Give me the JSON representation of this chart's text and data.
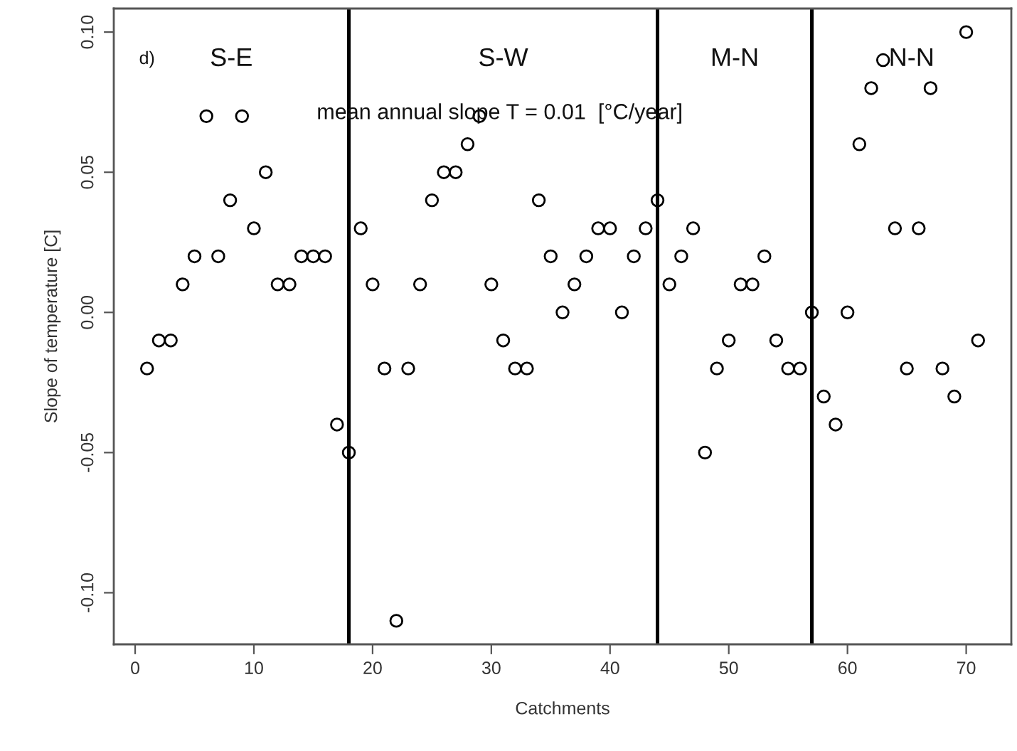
{
  "chart_data": {
    "type": "scatter",
    "xlabel": "Catchments",
    "ylabel": "Slope of temperature [C]",
    "x": [
      1,
      2,
      3,
      4,
      5,
      6,
      7,
      8,
      9,
      10,
      11,
      12,
      13,
      14,
      15,
      16,
      17,
      18,
      19,
      20,
      21,
      22,
      23,
      24,
      25,
      26,
      27,
      28,
      29,
      30,
      31,
      32,
      33,
      34,
      35,
      36,
      37,
      38,
      39,
      40,
      41,
      42,
      43,
      44,
      45,
      46,
      47,
      48,
      49,
      50,
      51,
      52,
      53,
      54,
      55,
      56,
      57,
      58,
      59,
      60,
      61,
      62,
      63,
      64,
      65,
      66,
      67,
      68,
      69,
      70,
      71
    ],
    "series": [
      {
        "color": "#000000",
        "values": [
          -0.02,
          -0.01,
          -0.01,
          0.01,
          0.02,
          0.07,
          0.02,
          0.04,
          0.07,
          0.03,
          0.05,
          0.01,
          0.01,
          0.02,
          0.02,
          0.02,
          -0.04,
          -0.05,
          0.03,
          0.01,
          -0.02,
          -0.11,
          -0.02,
          0.01,
          0.04,
          0.05,
          0.05,
          0.06,
          0.07,
          0.01,
          -0.01,
          -0.02,
          -0.02,
          0.04,
          0.02,
          0.0,
          0.01,
          0.02,
          0.03,
          0.03,
          0.0,
          0.02,
          0.03,
          0.04,
          0.01,
          0.02,
          0.03,
          -0.05,
          -0.02,
          -0.01,
          0.01,
          0.01,
          0.02,
          -0.01,
          -0.02,
          -0.02,
          0.0,
          -0.03,
          -0.04,
          0.0,
          0.06,
          0.08,
          0.09,
          0.03,
          -0.02,
          0.03,
          0.08,
          -0.02,
          -0.03,
          0.1,
          -0.01
        ]
      }
    ],
    "marker": "circle",
    "grid": false,
    "legend": false,
    "xlim": [
      -1.8,
      73.8
    ],
    "xticks": [
      0,
      10,
      20,
      30,
      40,
      50,
      60,
      70
    ],
    "ylim": [
      -0.1184,
      0.1084
    ],
    "yticks": [
      {
        "value": -0.1,
        "label": "-0.10"
      },
      {
        "value": -0.05,
        "label": "-0.05"
      },
      {
        "value": 0,
        "label": "0.00"
      },
      {
        "value": 0.05,
        "label": "0.05"
      },
      {
        "value": 0.1,
        "label": "0.10"
      }
    ],
    "ref_lines": [
      {
        "axis": "x",
        "value": 18,
        "color": "#000000"
      },
      {
        "axis": "x",
        "value": 44,
        "color": "#000000"
      },
      {
        "axis": "x",
        "value": 57,
        "color": "#000000"
      }
    ],
    "annotations": [
      "d)",
      "S-E",
      "S-W",
      "M-N",
      "N-N",
      "mean annual slope T = 0.01  [°C/year]"
    ]
  }
}
